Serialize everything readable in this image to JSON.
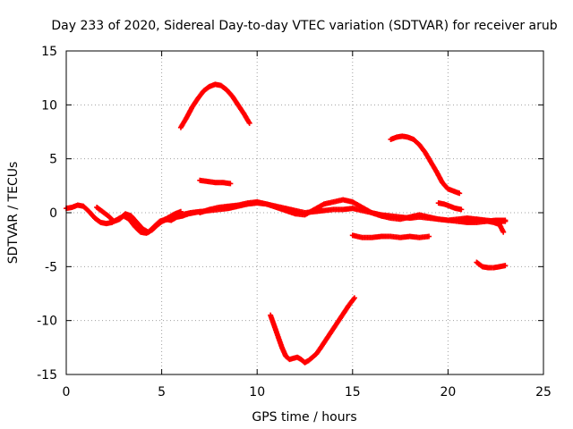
{
  "chart_data": {
    "type": "scatter",
    "title": "Day 233 of 2020, Sidereal Day-to-day VTEC variation (SDTVAR) for receiver arub",
    "xlabel": "GPS time / hours",
    "ylabel": "SDTVAR / TECUs",
    "xlim": [
      0,
      25
    ],
    "ylim": [
      -15,
      15
    ],
    "x_ticks": [
      0,
      5,
      10,
      15,
      20,
      25
    ],
    "x_tick_labels": [
      "0",
      "5",
      "10",
      "15",
      "20",
      "25"
    ],
    "y_ticks": [
      -15,
      -10,
      -5,
      0,
      5,
      10,
      15
    ],
    "y_tick_labels": [
      "-15",
      "-10",
      "-5",
      "0",
      "5",
      "10",
      "15"
    ],
    "grid": true,
    "legend": "none",
    "marker": "plus",
    "series_color": "#ff0000",
    "series": [
      {
        "name": "track-baseline-a",
        "x": [
          0.0,
          0.3,
          0.6,
          0.9,
          1.2,
          1.5,
          1.8,
          2.1,
          2.4,
          2.7,
          3.0,
          3.3,
          3.6,
          3.9,
          4.2,
          4.5,
          4.8,
          5.1,
          5.4,
          5.7,
          6.0
        ],
        "y": [
          0.4,
          0.5,
          0.7,
          0.6,
          0.1,
          -0.5,
          -0.9,
          -1.0,
          -0.9,
          -0.6,
          -0.3,
          -0.6,
          -1.3,
          -1.8,
          -1.9,
          -1.6,
          -1.1,
          -0.7,
          -0.4,
          -0.1,
          0.1
        ]
      },
      {
        "name": "track-baseline-b",
        "x": [
          1.6,
          1.9,
          2.2,
          2.5,
          2.8,
          3.1,
          3.4,
          3.7,
          4.0,
          4.3,
          4.6,
          4.9,
          5.2,
          5.5,
          5.8,
          6.1,
          6.4,
          6.7,
          7.0
        ],
        "y": [
          0.5,
          0.1,
          -0.3,
          -0.8,
          -0.6,
          -0.1,
          -0.3,
          -0.9,
          -1.5,
          -1.8,
          -1.3,
          -0.8,
          -0.6,
          -0.7,
          -0.4,
          -0.3,
          -0.1,
          0.0,
          0.1
        ]
      },
      {
        "name": "track-mid",
        "x": [
          5.0,
          5.5,
          6.0,
          6.5,
          7.0,
          7.5,
          8.0,
          8.5,
          9.0,
          9.5,
          10.0,
          10.5,
          11.0,
          11.5,
          12.0,
          12.5,
          13.0,
          13.5,
          14.0,
          14.5,
          15.0,
          15.5,
          16.0,
          16.5,
          17.0,
          17.5,
          18.0,
          18.5,
          19.0,
          19.5,
          20.0,
          20.5,
          21.0,
          21.5,
          22.0,
          22.5,
          23.0
        ],
        "y": [
          -0.8,
          -0.5,
          -0.2,
          0.0,
          0.1,
          0.2,
          0.3,
          0.4,
          0.6,
          0.8,
          0.9,
          0.8,
          0.6,
          0.4,
          0.2,
          0.0,
          0.1,
          0.2,
          0.3,
          0.3,
          0.4,
          0.2,
          0.0,
          -0.2,
          -0.3,
          -0.4,
          -0.5,
          -0.4,
          -0.5,
          -0.6,
          -0.7,
          -0.8,
          -0.9,
          -0.9,
          -0.8,
          -0.7,
          -0.7
        ]
      },
      {
        "name": "track-mid-b",
        "x": [
          7.0,
          7.5,
          8.0,
          8.5,
          9.0,
          9.5,
          10.0,
          10.5,
          11.0,
          11.5,
          12.0,
          12.5,
          13.0,
          13.5,
          14.0,
          14.5,
          15.0,
          15.5,
          16.0,
          16.5,
          17.0,
          17.5,
          18.0,
          18.5,
          19.0,
          19.5,
          20.0,
          20.5,
          21.0,
          21.5,
          22.0,
          22.5,
          23.0
        ],
        "y": [
          0.0,
          0.3,
          0.5,
          0.6,
          0.7,
          0.9,
          1.0,
          0.8,
          0.5,
          0.2,
          -0.1,
          -0.2,
          0.3,
          0.8,
          1.0,
          1.2,
          1.0,
          0.5,
          0.0,
          -0.3,
          -0.5,
          -0.6,
          -0.4,
          -0.2,
          -0.4,
          -0.6,
          -0.7,
          -0.6,
          -0.5,
          -0.6,
          -0.7,
          -0.8,
          -0.8
        ]
      },
      {
        "name": "track-high-arc",
        "x": [
          6.0,
          6.3,
          6.6,
          6.9,
          7.2,
          7.5,
          7.8,
          8.1,
          8.4,
          8.7,
          9.0,
          9.3,
          9.6
        ],
        "y": [
          7.9,
          8.8,
          9.8,
          10.6,
          11.3,
          11.7,
          11.9,
          11.8,
          11.4,
          10.8,
          10.0,
          9.2,
          8.3
        ]
      },
      {
        "name": "track-small-3",
        "x": [
          7.0,
          7.4,
          7.8,
          8.2,
          8.6
        ],
        "y": [
          3.0,
          2.9,
          2.8,
          2.8,
          2.7
        ]
      },
      {
        "name": "track-deep-dip",
        "x": [
          10.7,
          10.9,
          11.1,
          11.3,
          11.5,
          11.7,
          11.9,
          12.1,
          12.3,
          12.5,
          12.7,
          12.9,
          13.1,
          13.3,
          13.6,
          13.9,
          14.2,
          14.5,
          14.8,
          15.1
        ],
        "y": [
          -9.5,
          -10.5,
          -11.5,
          -12.5,
          -13.3,
          -13.6,
          -13.5,
          -13.4,
          -13.6,
          -13.9,
          -13.7,
          -13.4,
          -13.1,
          -12.6,
          -11.8,
          -11.0,
          -10.2,
          -9.4,
          -8.6,
          -7.9
        ]
      },
      {
        "name": "track-minus-2",
        "x": [
          15.0,
          15.5,
          16.0,
          16.5,
          17.0,
          17.5,
          18.0,
          18.5,
          19.0
        ],
        "y": [
          -2.1,
          -2.3,
          -2.3,
          -2.2,
          -2.2,
          -2.3,
          -2.2,
          -2.3,
          -2.2
        ]
      },
      {
        "name": "track-late-arc",
        "x": [
          17.0,
          17.3,
          17.6,
          17.9,
          18.2,
          18.5,
          18.8,
          19.1,
          19.4,
          19.7,
          20.0,
          20.3,
          20.6
        ],
        "y": [
          6.8,
          7.0,
          7.1,
          7.0,
          6.8,
          6.3,
          5.6,
          4.7,
          3.8,
          2.8,
          2.2,
          2.0,
          1.8
        ]
      },
      {
        "name": "track-small-1",
        "x": [
          19.5,
          19.8,
          20.1,
          20.4,
          20.7
        ],
        "y": [
          0.9,
          0.8,
          0.6,
          0.4,
          0.3
        ]
      },
      {
        "name": "track-minus-5",
        "x": [
          21.5,
          21.8,
          22.1,
          22.4,
          22.7,
          23.0
        ],
        "y": [
          -4.6,
          -5.0,
          -5.1,
          -5.1,
          -5.0,
          -4.9
        ]
      },
      {
        "name": "track-tail",
        "x": [
          21.5,
          21.8,
          22.1,
          22.4,
          22.7,
          22.9
        ],
        "y": [
          -0.6,
          -0.7,
          -0.8,
          -0.9,
          -1.1,
          -1.8
        ]
      }
    ]
  }
}
